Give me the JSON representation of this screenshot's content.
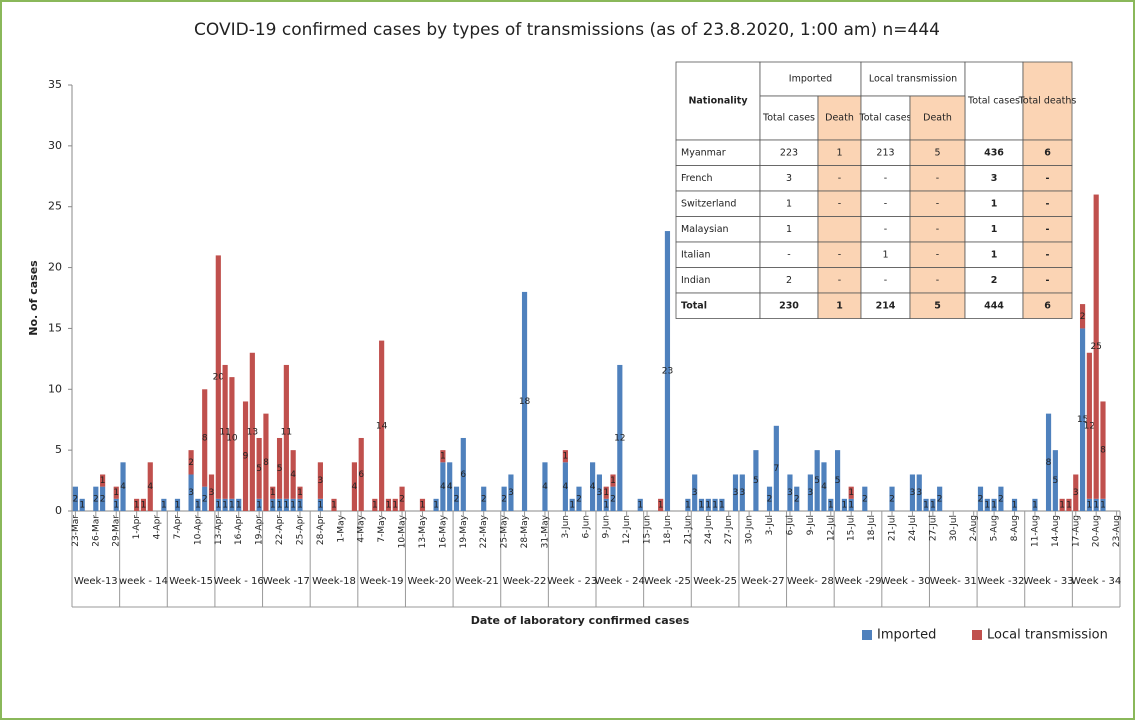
{
  "chart_data": {
    "type": "stacked_bar",
    "title": "COVID-19 confirmed cases by types of transmissions (as of 23.8.2020, 1:00 am) n=444",
    "y_label": "No. of cases",
    "x_label": "Date of laboratory confirmed cases",
    "ylim": [
      0,
      35
    ],
    "yticks": [
      0,
      5,
      10,
      15,
      20,
      25,
      30,
      35
    ],
    "categories": [
      "23-Mar",
      null,
      null,
      "26-Mar",
      null,
      null,
      "29-Mar",
      null,
      null,
      "1-Apr",
      null,
      null,
      "4-Apr",
      null,
      null,
      "7-Apr",
      null,
      null,
      "10-Apr",
      null,
      null,
      "13-Apr",
      null,
      null,
      "16-Apr",
      null,
      null,
      "19-Apr",
      null,
      null,
      "22-Apr",
      null,
      null,
      "25-Apr",
      null,
      null,
      "28-Apr",
      null,
      null,
      "1-May",
      null,
      null,
      "4-May",
      null,
      null,
      "7-May",
      null,
      null,
      "10-May",
      null,
      null,
      "13-May",
      null,
      null,
      "16-May",
      null,
      null,
      "19-May",
      null,
      null,
      "22-May",
      null,
      null,
      "25-May",
      null,
      null,
      "28-May",
      null,
      null,
      "31-May",
      null,
      null,
      "3-Jun",
      null,
      null,
      "6-Jun",
      null,
      null,
      "9-Jun",
      null,
      null,
      "12-Jun",
      null,
      null,
      "15-Jun",
      null,
      null,
      "18-Jun",
      null,
      null,
      "21-Jun",
      null,
      null,
      "24-Jun",
      null,
      null,
      "27-Jun",
      null,
      null,
      "30-Jun",
      null,
      null,
      "3-Jul",
      null,
      null,
      "6-Jul",
      null,
      null,
      "9-Jul",
      null,
      null,
      "12-Jul",
      null,
      null,
      "15-Jul",
      null,
      null,
      "18-Jul",
      null,
      null,
      "21-Jul",
      null,
      null,
      "24-Jul",
      null,
      null,
      "27-Jul",
      null,
      null,
      "30-Jul",
      null,
      null,
      "2-Aug",
      null,
      null,
      "5-Aug",
      null,
      null,
      "8-Aug",
      null,
      null,
      "11-Aug",
      null,
      null,
      "14-Aug",
      null,
      null,
      "17-Aug",
      null,
      null,
      "20-Aug",
      null,
      null,
      "23-Aug"
    ],
    "weeks": [
      "Week-13",
      "week - 14",
      "Week-15",
      "Week - 16",
      "Week -17",
      "Week-18",
      "Week-19",
      "Week-20",
      "Week-21",
      "Week-22",
      "Week - 23",
      "Week - 24",
      "Week -25",
      "Week-25",
      "Week-27",
      "Week- 28",
      "Week -29",
      "Week - 30",
      "Week- 31",
      "Week -32",
      "Week - 33",
      "Week - 34"
    ],
    "series": [
      {
        "name": "Imported",
        "color": "#4f81bd",
        "values": [
          2,
          1,
          0,
          2,
          2,
          0,
          1,
          4,
          0,
          0,
          0,
          0,
          0,
          1,
          0,
          1,
          0,
          3,
          1,
          2,
          0,
          1,
          1,
          1,
          1,
          0,
          0,
          1,
          0,
          1,
          1,
          1,
          1,
          1,
          0,
          0,
          1,
          0,
          0,
          0,
          0,
          0,
          0,
          0,
          0,
          0,
          0,
          0,
          0,
          0,
          0,
          0,
          0,
          1,
          4,
          4,
          2,
          6,
          0,
          0,
          2,
          0,
          0,
          2,
          3,
          0,
          18,
          0,
          0,
          4,
          0,
          0,
          4,
          1,
          2,
          0,
          4,
          3,
          1,
          2,
          12,
          0,
          0,
          1,
          0,
          0,
          0,
          23,
          0,
          0,
          1,
          3,
          1,
          1,
          1,
          1,
          0,
          3,
          3,
          0,
          5,
          0,
          2,
          7,
          0,
          3,
          2,
          0,
          3,
          5,
          4,
          1,
          5,
          1,
          1,
          0,
          2,
          0,
          0,
          0,
          2,
          0,
          0,
          3,
          3,
          1,
          1,
          2,
          0,
          0,
          0,
          0,
          0,
          2,
          1,
          1,
          2,
          0,
          1,
          0,
          0,
          1,
          0,
          8,
          5,
          0,
          0,
          0,
          15,
          1,
          1,
          1,
          0,
          0
        ]
      },
      {
        "name": "Local transmission",
        "color": "#c0504d",
        "values": [
          0,
          0,
          0,
          0,
          1,
          0,
          1,
          0,
          0,
          1,
          1,
          4,
          0,
          0,
          0,
          0,
          0,
          2,
          0,
          8,
          3,
          20,
          11,
          10,
          0,
          9,
          13,
          5,
          8,
          1,
          5,
          11,
          4,
          1,
          0,
          0,
          3,
          0,
          1,
          0,
          0,
          4,
          6,
          0,
          1,
          14,
          1,
          1,
          2,
          0,
          0,
          1,
          0,
          0,
          1,
          0,
          0,
          0,
          0,
          0,
          0,
          0,
          0,
          0,
          0,
          0,
          0,
          0,
          0,
          0,
          0,
          0,
          1,
          0,
          0,
          0,
          0,
          0,
          1,
          1,
          0,
          0,
          0,
          0,
          0,
          0,
          1,
          0,
          0,
          0,
          0,
          0,
          0,
          0,
          0,
          0,
          0,
          0,
          0,
          0,
          0,
          0,
          0,
          0,
          0,
          0,
          0,
          0,
          0,
          0,
          0,
          0,
          0,
          0,
          1,
          0,
          0,
          0,
          0,
          0,
          0,
          0,
          0,
          0,
          0,
          0,
          0,
          0,
          0,
          0,
          0,
          0,
          0,
          0,
          0,
          0,
          0,
          0,
          0,
          0,
          0,
          0,
          0,
          0,
          0,
          1,
          1,
          3,
          2,
          12,
          25,
          8,
          0,
          0
        ]
      }
    ],
    "legend": "bottom-right",
    "table": {
      "header": [
        "Nationality",
        "Imported",
        "Local transmission",
        "Total cases",
        "Total deaths"
      ],
      "subheader": [
        "Total cases",
        "Death",
        "Total cases",
        "Death"
      ],
      "rows": [
        [
          "Myanmar",
          "223",
          "1",
          "213",
          "5",
          "436",
          "6"
        ],
        [
          "French",
          "3",
          "-",
          "-",
          "-",
          "3",
          "-"
        ],
        [
          "Switzerland",
          "1",
          "-",
          "-",
          "-",
          "1",
          "-"
        ],
        [
          "Malaysian",
          "1",
          "",
          "-",
          "-",
          "1",
          "-"
        ],
        [
          "Italian",
          "-",
          "-",
          "1",
          "-",
          "1",
          "-"
        ],
        [
          "Indian",
          "2",
          "-",
          "-",
          "-",
          "2",
          "-"
        ],
        [
          "Total",
          "230",
          "1",
          "214",
          "5",
          "444",
          "6"
        ]
      ]
    }
  }
}
